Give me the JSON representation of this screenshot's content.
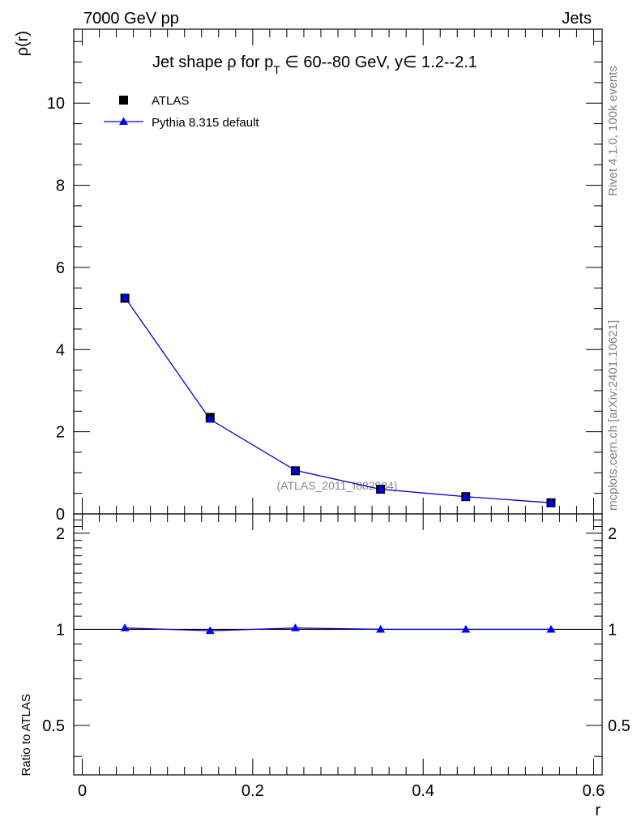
{
  "header": {
    "energy_label": "7000 GeV pp",
    "category_label": "Jets"
  },
  "side_labels": {
    "rivet": "Rivet 4.1.0,  100k events",
    "mcplots": "mcplots.cern.ch [arXiv:2401.10621]"
  },
  "watermark": "(ATLAS_2011_I882984)",
  "colors": {
    "data": "#000000",
    "mc": "#0000cc",
    "mc_marker": "#0000ff",
    "watermark": "#888888",
    "side_text": "#808080"
  },
  "chart_data": [
    {
      "type": "scatter",
      "panel": "main",
      "title_parts": {
        "prefix": "Jet shape ",
        "rho": "ρ",
        "for": " for p",
        "sub": "T",
        "range": " ∈ 60--80 GeV, y∈ 1.2--2.1"
      },
      "ylabel": "ρ(r)",
      "ylim": [
        0,
        11.8
      ],
      "xlim": [
        -0.01,
        0.61
      ],
      "y_ticks": [
        0,
        2,
        4,
        6,
        8,
        10
      ],
      "y_tick_labels": [
        "0",
        "2",
        "4",
        "6",
        "8",
        "10"
      ],
      "legend": {
        "placement": "top-left",
        "entries": [
          "ATLAS",
          "Pythia 8.315 default"
        ]
      },
      "series": [
        {
          "name": "ATLAS",
          "marker": "square",
          "x": [
            0.05,
            0.15,
            0.25,
            0.35,
            0.45,
            0.55
          ],
          "y": [
            5.25,
            2.35,
            1.05,
            0.6,
            0.42,
            0.27
          ]
        },
        {
          "name": "Pythia 8.315 default",
          "marker": "triangle",
          "line": true,
          "x": [
            0.05,
            0.15,
            0.25,
            0.35,
            0.45,
            0.55
          ],
          "y": [
            5.27,
            2.3,
            1.06,
            0.6,
            0.42,
            0.27
          ]
        }
      ]
    },
    {
      "type": "line",
      "panel": "ratio",
      "ylabel": "Ratio to ATLAS",
      "xlabel": "r",
      "ylim": [
        0.35,
        2.3
      ],
      "xlim": [
        -0.01,
        0.61
      ],
      "y_ticks": [
        0.5,
        1,
        2
      ],
      "y_tick_labels": [
        "0.5",
        "1",
        "2"
      ],
      "x_ticks": [
        0,
        0.2,
        0.4,
        0.6
      ],
      "x_tick_labels": [
        "0",
        "0.2",
        "0.4",
        "0.6"
      ],
      "reference_line": 1,
      "series": [
        {
          "name": "Pythia 8.315 default",
          "marker": "triangle",
          "x": [
            0.05,
            0.15,
            0.25,
            0.35,
            0.45,
            0.55
          ],
          "y": [
            1.01,
            0.99,
            1.01,
            1.0,
            1.0,
            1.0
          ]
        }
      ]
    }
  ]
}
